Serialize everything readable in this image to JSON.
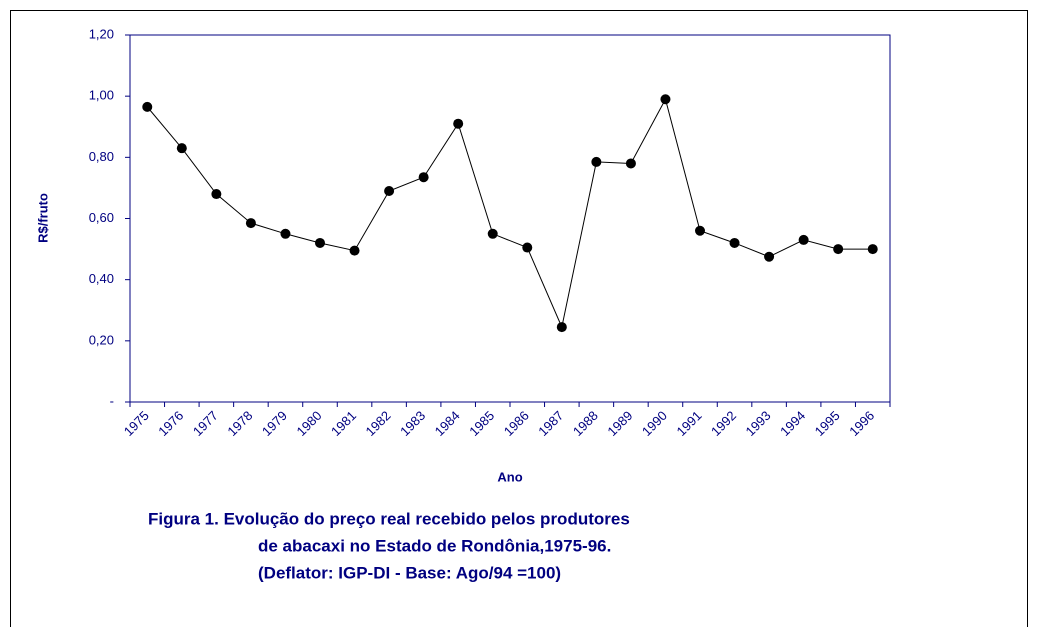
{
  "chart_data": {
    "type": "line",
    "ylabel": "R$/fruto",
    "xlabel": "Ano",
    "caption": [
      "Figura 1.  Evolução do preço real recebido pelos produtores",
      "de abacaxi no Estado de Rondônia,1975-96.",
      "(Deflator: IGP-DI - Base: Ago/94 =100)"
    ],
    "categories": [
      "1975",
      "1976",
      "1977",
      "1978",
      "1979",
      "1980",
      "1981",
      "1982",
      "1983",
      "1984",
      "1985",
      "1986",
      "1987",
      "1988",
      "1989",
      "1990",
      "1991",
      "1992",
      "1993",
      "1994",
      "1995",
      "1996"
    ],
    "values": [
      0.965,
      0.83,
      0.68,
      0.585,
      0.55,
      0.52,
      0.495,
      0.69,
      0.735,
      0.91,
      0.55,
      0.505,
      0.245,
      0.785,
      0.78,
      0.99,
      0.56,
      0.52,
      0.475,
      0.53,
      0.5,
      0.5
    ],
    "color": "#000000",
    "ylim": [
      0,
      1.2
    ],
    "yticks": [
      {
        "value": 0,
        "label": "-"
      },
      {
        "value": 0.2,
        "label": "0,20"
      },
      {
        "value": 0.4,
        "label": "0,40"
      },
      {
        "value": 0.6,
        "label": "0,60"
      },
      {
        "value": 0.8,
        "label": "0,80"
      },
      {
        "value": 1.0,
        "label": "1,00"
      },
      {
        "value": 1.2,
        "label": "1,20"
      }
    ],
    "grid": false
  }
}
